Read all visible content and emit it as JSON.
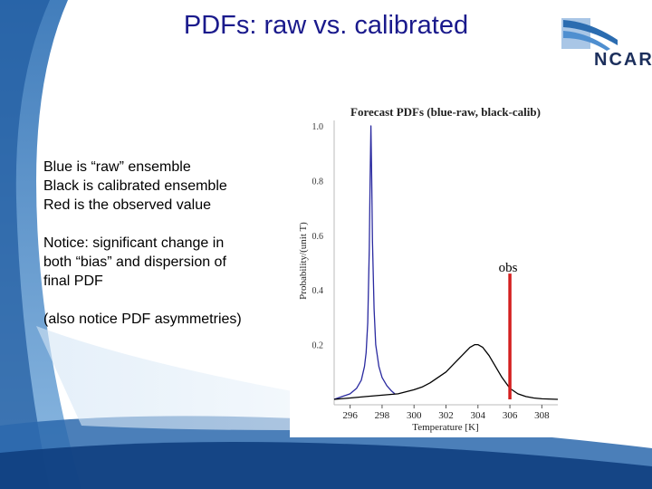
{
  "slide": {
    "title": "PDFs: raw vs. calibrated",
    "logo_text": "NCAR",
    "notes": [
      "Blue is “raw” ensemble",
      "Black is calibrated ensemble",
      "Red is the observed value",
      "Notice: significant change in",
      "both “bias” and dispersion of",
      "final PDF",
      "(also notice PDF asymmetries)"
    ]
  },
  "colors": {
    "title": "#1a1a8c",
    "raw": "#2a2aa0",
    "calibrated": "#000000",
    "observed": "#d42020"
  },
  "chart_data": {
    "type": "line",
    "title": "Forecast PDFs (blue-raw, black-calib)",
    "xlabel": "Temperature [K]",
    "ylabel": "Probability/(unit T)",
    "xlim": [
      295,
      309
    ],
    "ylim": [
      -0.02,
      1.02
    ],
    "xticks": [
      296,
      298,
      300,
      302,
      304,
      306,
      308
    ],
    "yticks": [
      0.2,
      0.4,
      0.6,
      0.8,
      1.0
    ],
    "ytick_labels": [
      "0.2",
      "0.4",
      "0.6",
      "0.8",
      "1.0"
    ],
    "series": [
      {
        "color": "raw",
        "x": [
          295.0,
          295.5,
          296.0,
          296.4,
          296.7,
          296.9,
          297.0,
          297.1,
          297.2,
          297.25,
          297.3,
          297.35,
          297.4,
          297.5,
          297.6,
          297.8,
          298.0,
          298.3,
          298.6,
          298.8
        ],
        "y": [
          0.0,
          0.01,
          0.02,
          0.04,
          0.07,
          0.12,
          0.17,
          0.28,
          0.55,
          0.8,
          1.0,
          0.8,
          0.58,
          0.33,
          0.2,
          0.12,
          0.08,
          0.05,
          0.03,
          0.02
        ]
      },
      {
        "color": "calibrated",
        "x": [
          295.0,
          296.0,
          297.0,
          298.0,
          299.0,
          300.0,
          300.5,
          301.0,
          301.5,
          302.0,
          302.5,
          303.0,
          303.5,
          303.8,
          304.0,
          304.3,
          304.7,
          305.0,
          305.5,
          306.0,
          306.5,
          307.0,
          307.5,
          308.0,
          309.0
        ],
        "y": [
          0.0,
          0.005,
          0.01,
          0.015,
          0.02,
          0.035,
          0.045,
          0.06,
          0.08,
          0.1,
          0.13,
          0.16,
          0.19,
          0.2,
          0.2,
          0.19,
          0.16,
          0.13,
          0.08,
          0.04,
          0.02,
          0.01,
          0.005,
          0.002,
          0.0
        ]
      },
      {
        "color": "observed",
        "x": [
          306.0,
          306.0
        ],
        "y": [
          0.0,
          0.46
        ]
      }
    ],
    "annotations": [
      {
        "text": "obs",
        "x": 306.0,
        "y": 0.48
      }
    ],
    "grid": false,
    "legend": "none"
  }
}
